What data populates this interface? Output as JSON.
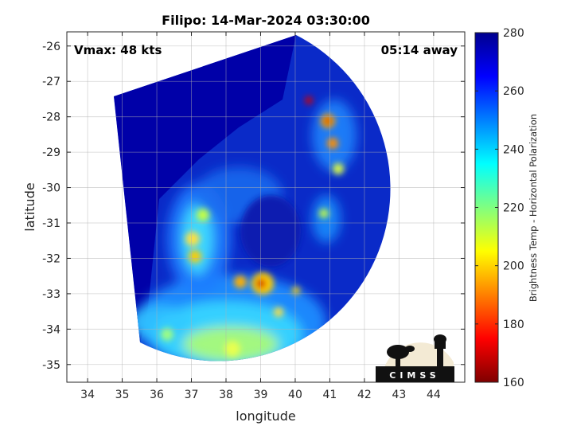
{
  "chart_data": {
    "type": "heatmap",
    "title": "Filipo: 14-Mar-2024 03:30:00",
    "xlabel": "longitude",
    "ylabel": "latitude",
    "xlim": [
      33.4,
      44.9
    ],
    "ylim": [
      -35.5,
      -25.6
    ],
    "xticks": [
      34,
      35,
      36,
      37,
      38,
      39,
      40,
      41,
      42,
      43,
      44
    ],
    "yticks": [
      -26,
      -27,
      -28,
      -29,
      -30,
      -31,
      -32,
      -33,
      -34,
      -35
    ],
    "grid": true,
    "annotations": {
      "vmax": "Vmax: 48 kts",
      "time_away": "05:14 away"
    },
    "colorbar": {
      "label": "Brightness Temp - Horizontal Polarization",
      "range": [
        160,
        280
      ],
      "ticks": [
        160,
        180,
        200,
        220,
        240,
        260,
        280
      ],
      "colors": [
        "#7f0000",
        "#ff0000",
        "#ff8000",
        "#ffff00",
        "#80ff80",
        "#00ffff",
        "#0080ff",
        "#0000ff",
        "#00008f"
      ]
    },
    "swath": {
      "center": [
        39.8,
        -30.0
      ],
      "radius_deg": 4.9,
      "background_value": 268
    },
    "features": [
      {
        "lon": 39.0,
        "lat": -32.65,
        "value": 175
      },
      {
        "lon": 38.4,
        "lat": -32.6,
        "value": 195
      },
      {
        "lon": 37.1,
        "lat": -32.0,
        "value": 200
      },
      {
        "lon": 37.0,
        "lat": -31.5,
        "value": 205
      },
      {
        "lon": 37.3,
        "lat": -30.7,
        "value": 215
      },
      {
        "lon": 40.9,
        "lat": -27.95,
        "value": 180
      },
      {
        "lon": 41.1,
        "lat": -28.5,
        "value": 200
      },
      {
        "lon": 40.3,
        "lat": -27.4,
        "value": 185
      },
      {
        "lon": 41.2,
        "lat": -29.4,
        "value": 215
      },
      {
        "lon": 40.8,
        "lat": -30.6,
        "value": 210
      },
      {
        "lon": 39.9,
        "lat": -32.8,
        "value": 205
      },
      {
        "lon": 38.6,
        "lat": -34.5,
        "value": 225
      },
      {
        "lon": 37.0,
        "lat": -33.7,
        "value": 230
      }
    ]
  },
  "logo": {
    "text": "CIMSS"
  }
}
